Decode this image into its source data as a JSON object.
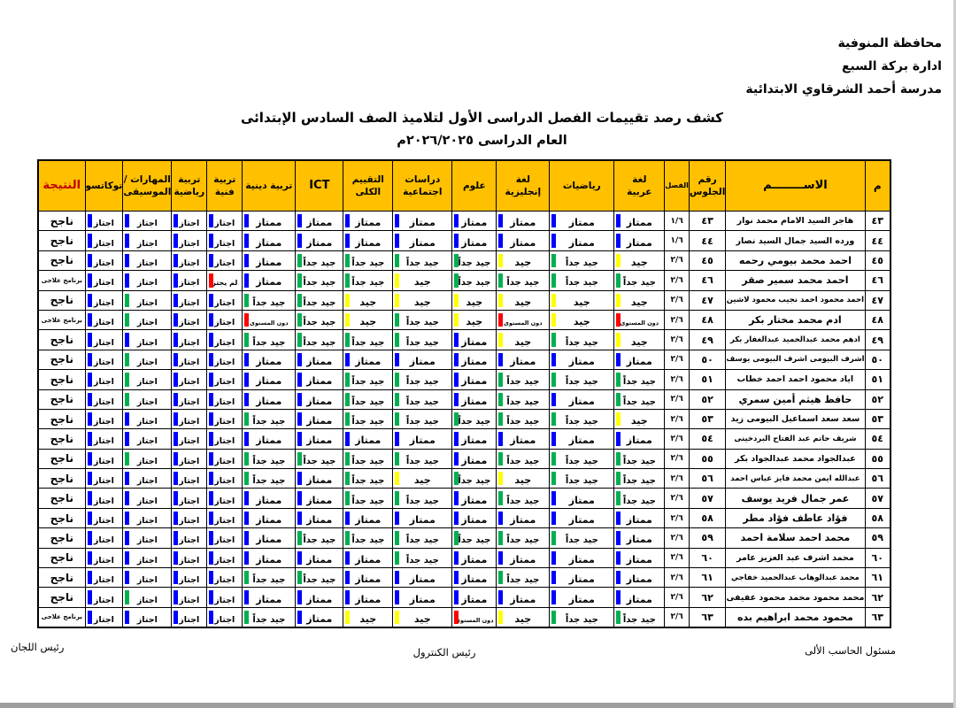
{
  "page": {
    "agency_lines": [
      "محافظة المنوفية",
      "ادارة بركة السبع",
      "مدرسة أحمد الشرقاوي الابتدائية"
    ],
    "title": "كشف رصد تقييمات الفصل الدراسى الأول لتلاميذ الصف السادس الإبتدائى",
    "subtitle": "العام الدراسى ٢٠٢٦/٢٠٢٥م",
    "footer": {
      "right": "مسئول الحاسب الألى",
      "center": "رئيس الكنترول",
      "left": "رئيس اللجان"
    }
  },
  "table": {
    "header_bg": "#FFC000",
    "result_header_color": "#C00000",
    "columns": [
      [
        "م"
      ],
      [
        "الاســــــــم"
      ],
      [
        "رقم",
        "الجلوس"
      ],
      [
        "الفصل"
      ],
      [
        "لغة",
        "عربية"
      ],
      [
        "رياضيات"
      ],
      [
        "لغة",
        "إنجليزية"
      ],
      [
        "علوم"
      ],
      [
        "دراسات",
        "اجتماعية"
      ],
      [
        "التقييم",
        "الكلى"
      ],
      [
        "ICT"
      ],
      [
        "تربية دينية"
      ],
      [
        "تربية",
        "فنية"
      ],
      [
        "تربية",
        "رياضية"
      ],
      [
        "المهارات /",
        "الموسيقى"
      ],
      [
        "توكاتسو"
      ],
      [
        "النتيجة"
      ]
    ],
    "grade_columns_order": [
      "لغة عربية",
      "رياضيات",
      "لغة إنجليزية",
      "علوم",
      "دراسات اجتماعية",
      "التقييم الكلى",
      "ICT",
      "تربية دينية",
      "تربية فنية",
      "تربية رياضية",
      "المهارات / الموسيقى",
      "توكاتسو"
    ],
    "grade_levels": {
      "E": {
        "label": "ممتاز",
        "color": "#0000FF"
      },
      "V": {
        "label": "جيد جداً",
        "color": "#00B050"
      },
      "G": {
        "label": "جيد",
        "color": "#FFFF00"
      },
      "D": {
        "label": "دون المستوى",
        "color": "#FF0000"
      },
      "P": {
        "label": "اجتاز",
        "color": "#0000FF"
      },
      "PG": {
        "label": "اجتاز",
        "color": "#00B050"
      },
      "F": {
        "label": "لم يجتز",
        "color": "#FF0000"
      }
    },
    "results": {
      "pass": "ناجح",
      "remedial": "برنامج علاجى"
    },
    "rows": [
      {
        "no": "٤٣",
        "name": "هاجر السيد الامام محمد نوار",
        "seat": "٤٣",
        "cls": "١/٦",
        "g": [
          "E",
          "E",
          "E",
          "E",
          "E",
          "E",
          "E",
          "E",
          "P",
          "P",
          "P",
          "P"
        ],
        "result": "pass"
      },
      {
        "no": "٤٤",
        "name": "ورده السيد جمال السيد نصار",
        "seat": "٤٤",
        "cls": "١/٦",
        "g": [
          "E",
          "E",
          "E",
          "E",
          "E",
          "E",
          "E",
          "E",
          "P",
          "P",
          "P",
          "P"
        ],
        "result": "pass"
      },
      {
        "no": "٤٥",
        "name": "احمد محمد بيومي رحمه",
        "seat": "٤٥",
        "cls": "٢/٦",
        "g": [
          "G",
          "V",
          "G",
          "V",
          "V",
          "V",
          "V",
          "E",
          "P",
          "P",
          "P",
          "P"
        ],
        "result": "pass"
      },
      {
        "no": "٤٦",
        "name": "احمد محمد سمير صقر",
        "seat": "٤٦",
        "cls": "٢/٦",
        "g": [
          "V",
          "V",
          "V",
          "V",
          "G",
          "V",
          "V",
          "E",
          "F",
          "P",
          "P",
          "P"
        ],
        "result": "remedial"
      },
      {
        "no": "٤٧",
        "name": "احمد محمود احمد نجيب محمود لاشين",
        "seat": "٤٧",
        "cls": "٢/٦",
        "g": [
          "G",
          "G",
          "G",
          "G",
          "G",
          "G",
          "V",
          "V",
          "P",
          "P",
          "PG",
          "P"
        ],
        "result": "pass"
      },
      {
        "no": "٤٨",
        "name": "ادم محمد مختار بكر",
        "seat": "٤٨",
        "cls": "٢/٦",
        "g": [
          "D",
          "G",
          "D",
          "G",
          "V",
          "G",
          "V",
          "D",
          "P",
          "P",
          "PG",
          "P"
        ],
        "result": "remedial"
      },
      {
        "no": "٤٩",
        "name": "ادهم محمد عبدالحميد عبدالغفار بكر",
        "seat": "٤٩",
        "cls": "٢/٦",
        "g": [
          "G",
          "V",
          "G",
          "E",
          "V",
          "V",
          "V",
          "V",
          "P",
          "P",
          "P",
          "P"
        ],
        "result": "pass"
      },
      {
        "no": "٥٠",
        "name": "اشرف البيومى اشرف البيومى يوسف",
        "seat": "٥٠",
        "cls": "٢/٦",
        "g": [
          "E",
          "E",
          "E",
          "E",
          "E",
          "E",
          "E",
          "E",
          "P",
          "P",
          "PG",
          "P"
        ],
        "result": "pass"
      },
      {
        "no": "٥١",
        "name": "اياد محمود احمد احمد خطاب",
        "seat": "٥١",
        "cls": "٢/٦",
        "g": [
          "V",
          "V",
          "V",
          "E",
          "V",
          "V",
          "E",
          "E",
          "P",
          "P",
          "PG",
          "P"
        ],
        "result": "pass"
      },
      {
        "no": "٥٢",
        "name": "حافظ هيثم أمين سمري",
        "seat": "٥٢",
        "cls": "٢/٦",
        "g": [
          "V",
          "E",
          "V",
          "E",
          "V",
          "V",
          "E",
          "E",
          "P",
          "P",
          "PG",
          "P"
        ],
        "result": "pass"
      },
      {
        "no": "٥٣",
        "name": "سعد سعد اسماعيل البيومى زيد",
        "seat": "٥٣",
        "cls": "٢/٦",
        "g": [
          "G",
          "V",
          "V",
          "V",
          "V",
          "V",
          "E",
          "V",
          "P",
          "P",
          "P",
          "P"
        ],
        "result": "pass"
      },
      {
        "no": "٥٤",
        "name": "شريف حاتم عبد الفتاح البردخينى",
        "seat": "٥٤",
        "cls": "٢/٦",
        "g": [
          "E",
          "E",
          "E",
          "E",
          "E",
          "E",
          "E",
          "E",
          "P",
          "P",
          "P",
          "P"
        ],
        "result": "pass"
      },
      {
        "no": "٥٥",
        "name": "عبدالجواد محمد عبدالجواد بكر",
        "seat": "٥٥",
        "cls": "٢/٦",
        "g": [
          "V",
          "V",
          "V",
          "E",
          "V",
          "V",
          "V",
          "V",
          "P",
          "P",
          "PG",
          "P"
        ],
        "result": "pass"
      },
      {
        "no": "٥٦",
        "name": "عبدالله ايمن محمد فايز عباس احمد",
        "seat": "٥٦",
        "cls": "٢/٦",
        "g": [
          "V",
          "V",
          "G",
          "V",
          "G",
          "V",
          "E",
          "V",
          "P",
          "P",
          "P",
          "P"
        ],
        "result": "pass"
      },
      {
        "no": "٥٧",
        "name": "عمر جمال فريد يوسف",
        "seat": "٥٧",
        "cls": "٢/٦",
        "g": [
          "V",
          "E",
          "V",
          "E",
          "V",
          "V",
          "E",
          "E",
          "P",
          "P",
          "P",
          "P"
        ],
        "result": "pass"
      },
      {
        "no": "٥٨",
        "name": "فؤاد عاطف فؤاد مطر",
        "seat": "٥٨",
        "cls": "٢/٦",
        "g": [
          "E",
          "E",
          "E",
          "E",
          "E",
          "E",
          "E",
          "E",
          "P",
          "P",
          "P",
          "P"
        ],
        "result": "pass"
      },
      {
        "no": "٥٩",
        "name": "محمد احمد سلامة احمد",
        "seat": "٥٩",
        "cls": "٢/٦",
        "g": [
          "E",
          "V",
          "V",
          "V",
          "V",
          "V",
          "V",
          "E",
          "P",
          "P",
          "P",
          "P"
        ],
        "result": "pass"
      },
      {
        "no": "٦٠",
        "name": "محمد اشرف عبد العزيز عامر",
        "seat": "٦٠",
        "cls": "٢/٦",
        "g": [
          "E",
          "E",
          "E",
          "E",
          "V",
          "E",
          "E",
          "E",
          "P",
          "P",
          "P",
          "P"
        ],
        "result": "pass"
      },
      {
        "no": "٦١",
        "name": "محمد عبدالوهاب عبدالحميد خفاجي",
        "seat": "٦١",
        "cls": "٢/٦",
        "g": [
          "E",
          "E",
          "V",
          "E",
          "E",
          "E",
          "V",
          "V",
          "P",
          "P",
          "P",
          "P"
        ],
        "result": "pass"
      },
      {
        "no": "٦٢",
        "name": "محمد محمود محمد محمود عفيفى",
        "seat": "٦٢",
        "cls": "٢/٦",
        "g": [
          "E",
          "E",
          "E",
          "E",
          "E",
          "E",
          "E",
          "E",
          "P",
          "P",
          "PG",
          "P"
        ],
        "result": "pass"
      },
      {
        "no": "٦٣",
        "name": "محمود محمد ابراهيم بده",
        "seat": "٦٣",
        "cls": "٢/٦",
        "g": [
          "V",
          "V",
          "G",
          "D",
          "G",
          "G",
          "E",
          "V",
          "P",
          "P",
          "P",
          "P"
        ],
        "result": "remedial"
      }
    ]
  }
}
